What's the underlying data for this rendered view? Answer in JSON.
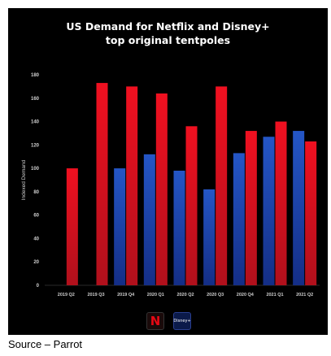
{
  "title_line1": "US Demand for Netflix and Disney+",
  "title_line2": "top original tentpoles",
  "source": "Source – Parrot",
  "logos": {
    "netflix": "N",
    "disney": "Disney+"
  },
  "chart_data": {
    "type": "bar",
    "title": "US Demand for Netflix and Disney+ top original tentpoles",
    "xlabel": "",
    "ylabel": "Indexed Demand",
    "ylim": [
      0,
      180
    ],
    "yticks": [
      0,
      20,
      40,
      60,
      80,
      100,
      120,
      140,
      160,
      180
    ],
    "grid": false,
    "categories": [
      "2019 Q2",
      "2019 Q3",
      "2019 Q4",
      "2020 Q1",
      "2020 Q2",
      "2020 Q3",
      "2020 Q4",
      "2021 Q1",
      "2021 Q2"
    ],
    "series": [
      {
        "name": "Disney+",
        "color": "#1f4fb8",
        "values": [
          null,
          null,
          100,
          112,
          98,
          82,
          113,
          127,
          132
        ]
      },
      {
        "name": "Netflix",
        "color": "#e8101e",
        "values": [
          100,
          173,
          170,
          164,
          136,
          170,
          132,
          140,
          123
        ]
      }
    ]
  }
}
